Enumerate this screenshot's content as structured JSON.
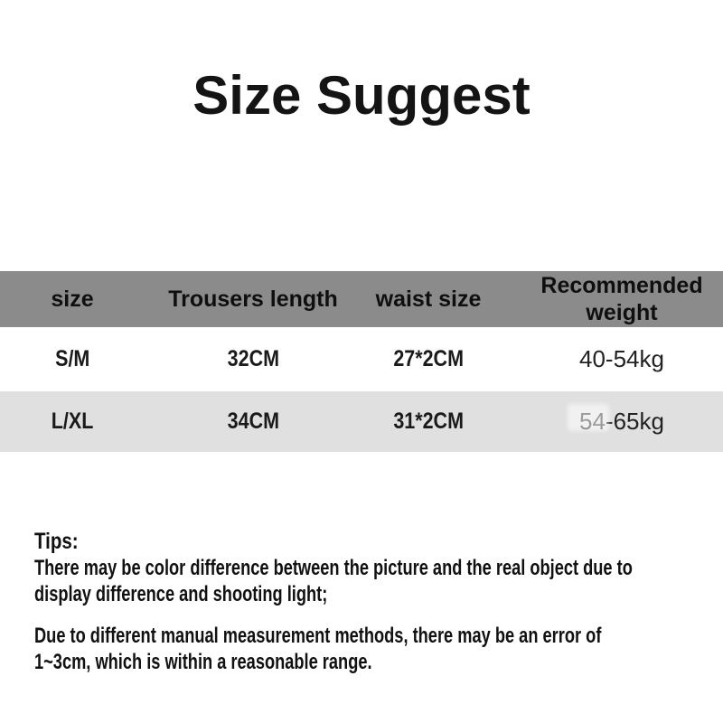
{
  "title": "Size Suggest",
  "table": {
    "header_bg": "#8b8b8b",
    "alt_row_bg": "#e0e0e0",
    "columns": {
      "size": "size",
      "trousers_length": "Trousers length",
      "waist_size": "waist size",
      "recommended_weight": "Recommended\nweight"
    },
    "rows": [
      {
        "size": "S/M",
        "trousers_length": "32CM",
        "waist_size": "27*2CM",
        "recommended_weight": "40-54kg"
      },
      {
        "size": "L/XL",
        "trousers_length": "34CM",
        "waist_size": "31*2CM",
        "recommended_weight": "54-65kg"
      }
    ]
  },
  "tips": {
    "heading": "Tips:",
    "paragraphs": [
      "There may be color difference between the picture and the real object due to\ndisplay difference and shooting light;",
      "Due to different manual measurement methods, there may be an error of\n1~3cm, which is within a reasonable range."
    ]
  }
}
